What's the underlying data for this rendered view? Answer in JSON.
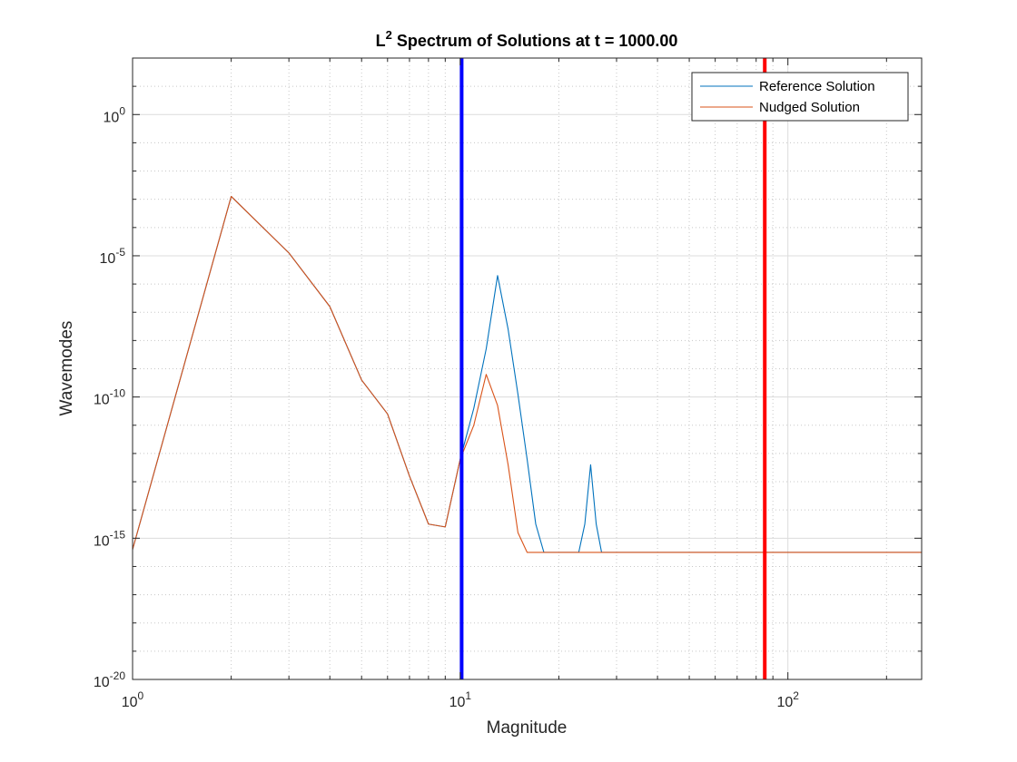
{
  "chart_data": {
    "type": "line",
    "title": {
      "base": "L",
      "superscript": "2",
      "rest": " Spectrum of Solutions at t = 1000.00"
    },
    "xlabel": "Magnitude",
    "ylabel": "Wavemodes",
    "xscale": "log",
    "yscale": "log",
    "xlim": [
      1,
      256
    ],
    "ylim_exponent": [
      -20,
      2
    ],
    "grid": true,
    "minor_grid": true,
    "legend_placement": "top-right",
    "x_ticks": [
      {
        "value": 1,
        "base": "10",
        "exp": "0"
      },
      {
        "value": 10,
        "base": "10",
        "exp": "1"
      },
      {
        "value": 100,
        "base": "10",
        "exp": "2"
      }
    ],
    "y_ticks": [
      {
        "exponent": 0,
        "base": "10",
        "exp": "0"
      },
      {
        "exponent": -5,
        "base": "10",
        "exp": "-5"
      },
      {
        "exponent": -10,
        "base": "10",
        "exp": "-10"
      },
      {
        "exponent": -15,
        "base": "10",
        "exp": "-15"
      },
      {
        "exponent": -20,
        "base": "10",
        "exp": "-20"
      }
    ],
    "series": [
      {
        "name": "Reference Solution",
        "color": "#0072BD",
        "points": [
          [
            1,
            -15.4
          ],
          [
            2,
            -2.9
          ],
          [
            3,
            -4.9
          ],
          [
            4,
            -6.8
          ],
          [
            5,
            -9.4
          ],
          [
            6,
            -10.6
          ],
          [
            7,
            -12.8
          ],
          [
            8,
            -14.5
          ],
          [
            9,
            -14.6
          ],
          [
            10,
            -12.2
          ],
          [
            11,
            -10.4
          ],
          [
            12,
            -8.3
          ],
          [
            13,
            -5.7
          ],
          [
            14,
            -7.6
          ],
          [
            15,
            -9.9
          ],
          [
            16,
            -12.2
          ],
          [
            17,
            -14.5
          ],
          [
            18,
            -15.5
          ],
          [
            19,
            -15.5
          ],
          [
            20,
            -15.5
          ],
          [
            21,
            -15.5
          ],
          [
            22,
            -15.5
          ],
          [
            23,
            -15.5
          ],
          [
            24,
            -14.5
          ],
          [
            25,
            -12.4
          ],
          [
            26,
            -14.5
          ],
          [
            27,
            -15.5
          ],
          [
            28,
            -15.5
          ],
          [
            40,
            -15.5
          ],
          [
            60,
            -15.5
          ],
          [
            100,
            -15.5
          ],
          [
            256,
            -15.5
          ]
        ]
      },
      {
        "name": "Nudged Solution",
        "color": "#D95319",
        "points": [
          [
            1,
            -15.4
          ],
          [
            2,
            -2.9
          ],
          [
            3,
            -4.9
          ],
          [
            4,
            -6.8
          ],
          [
            5,
            -9.4
          ],
          [
            6,
            -10.6
          ],
          [
            7,
            -12.8
          ],
          [
            8,
            -14.5
          ],
          [
            9,
            -14.6
          ],
          [
            10,
            -12.2
          ],
          [
            11,
            -11.0
          ],
          [
            12,
            -9.2
          ],
          [
            13,
            -10.3
          ],
          [
            14,
            -12.4
          ],
          [
            15,
            -14.8
          ],
          [
            16,
            -15.5
          ],
          [
            20,
            -15.5
          ],
          [
            40,
            -15.5
          ],
          [
            100,
            -15.5
          ],
          [
            256,
            -15.5
          ]
        ]
      }
    ],
    "vertical_lines": [
      {
        "x": 10.1,
        "color": "#0000FF"
      },
      {
        "x": 85,
        "color": "#FF0000"
      }
    ]
  }
}
